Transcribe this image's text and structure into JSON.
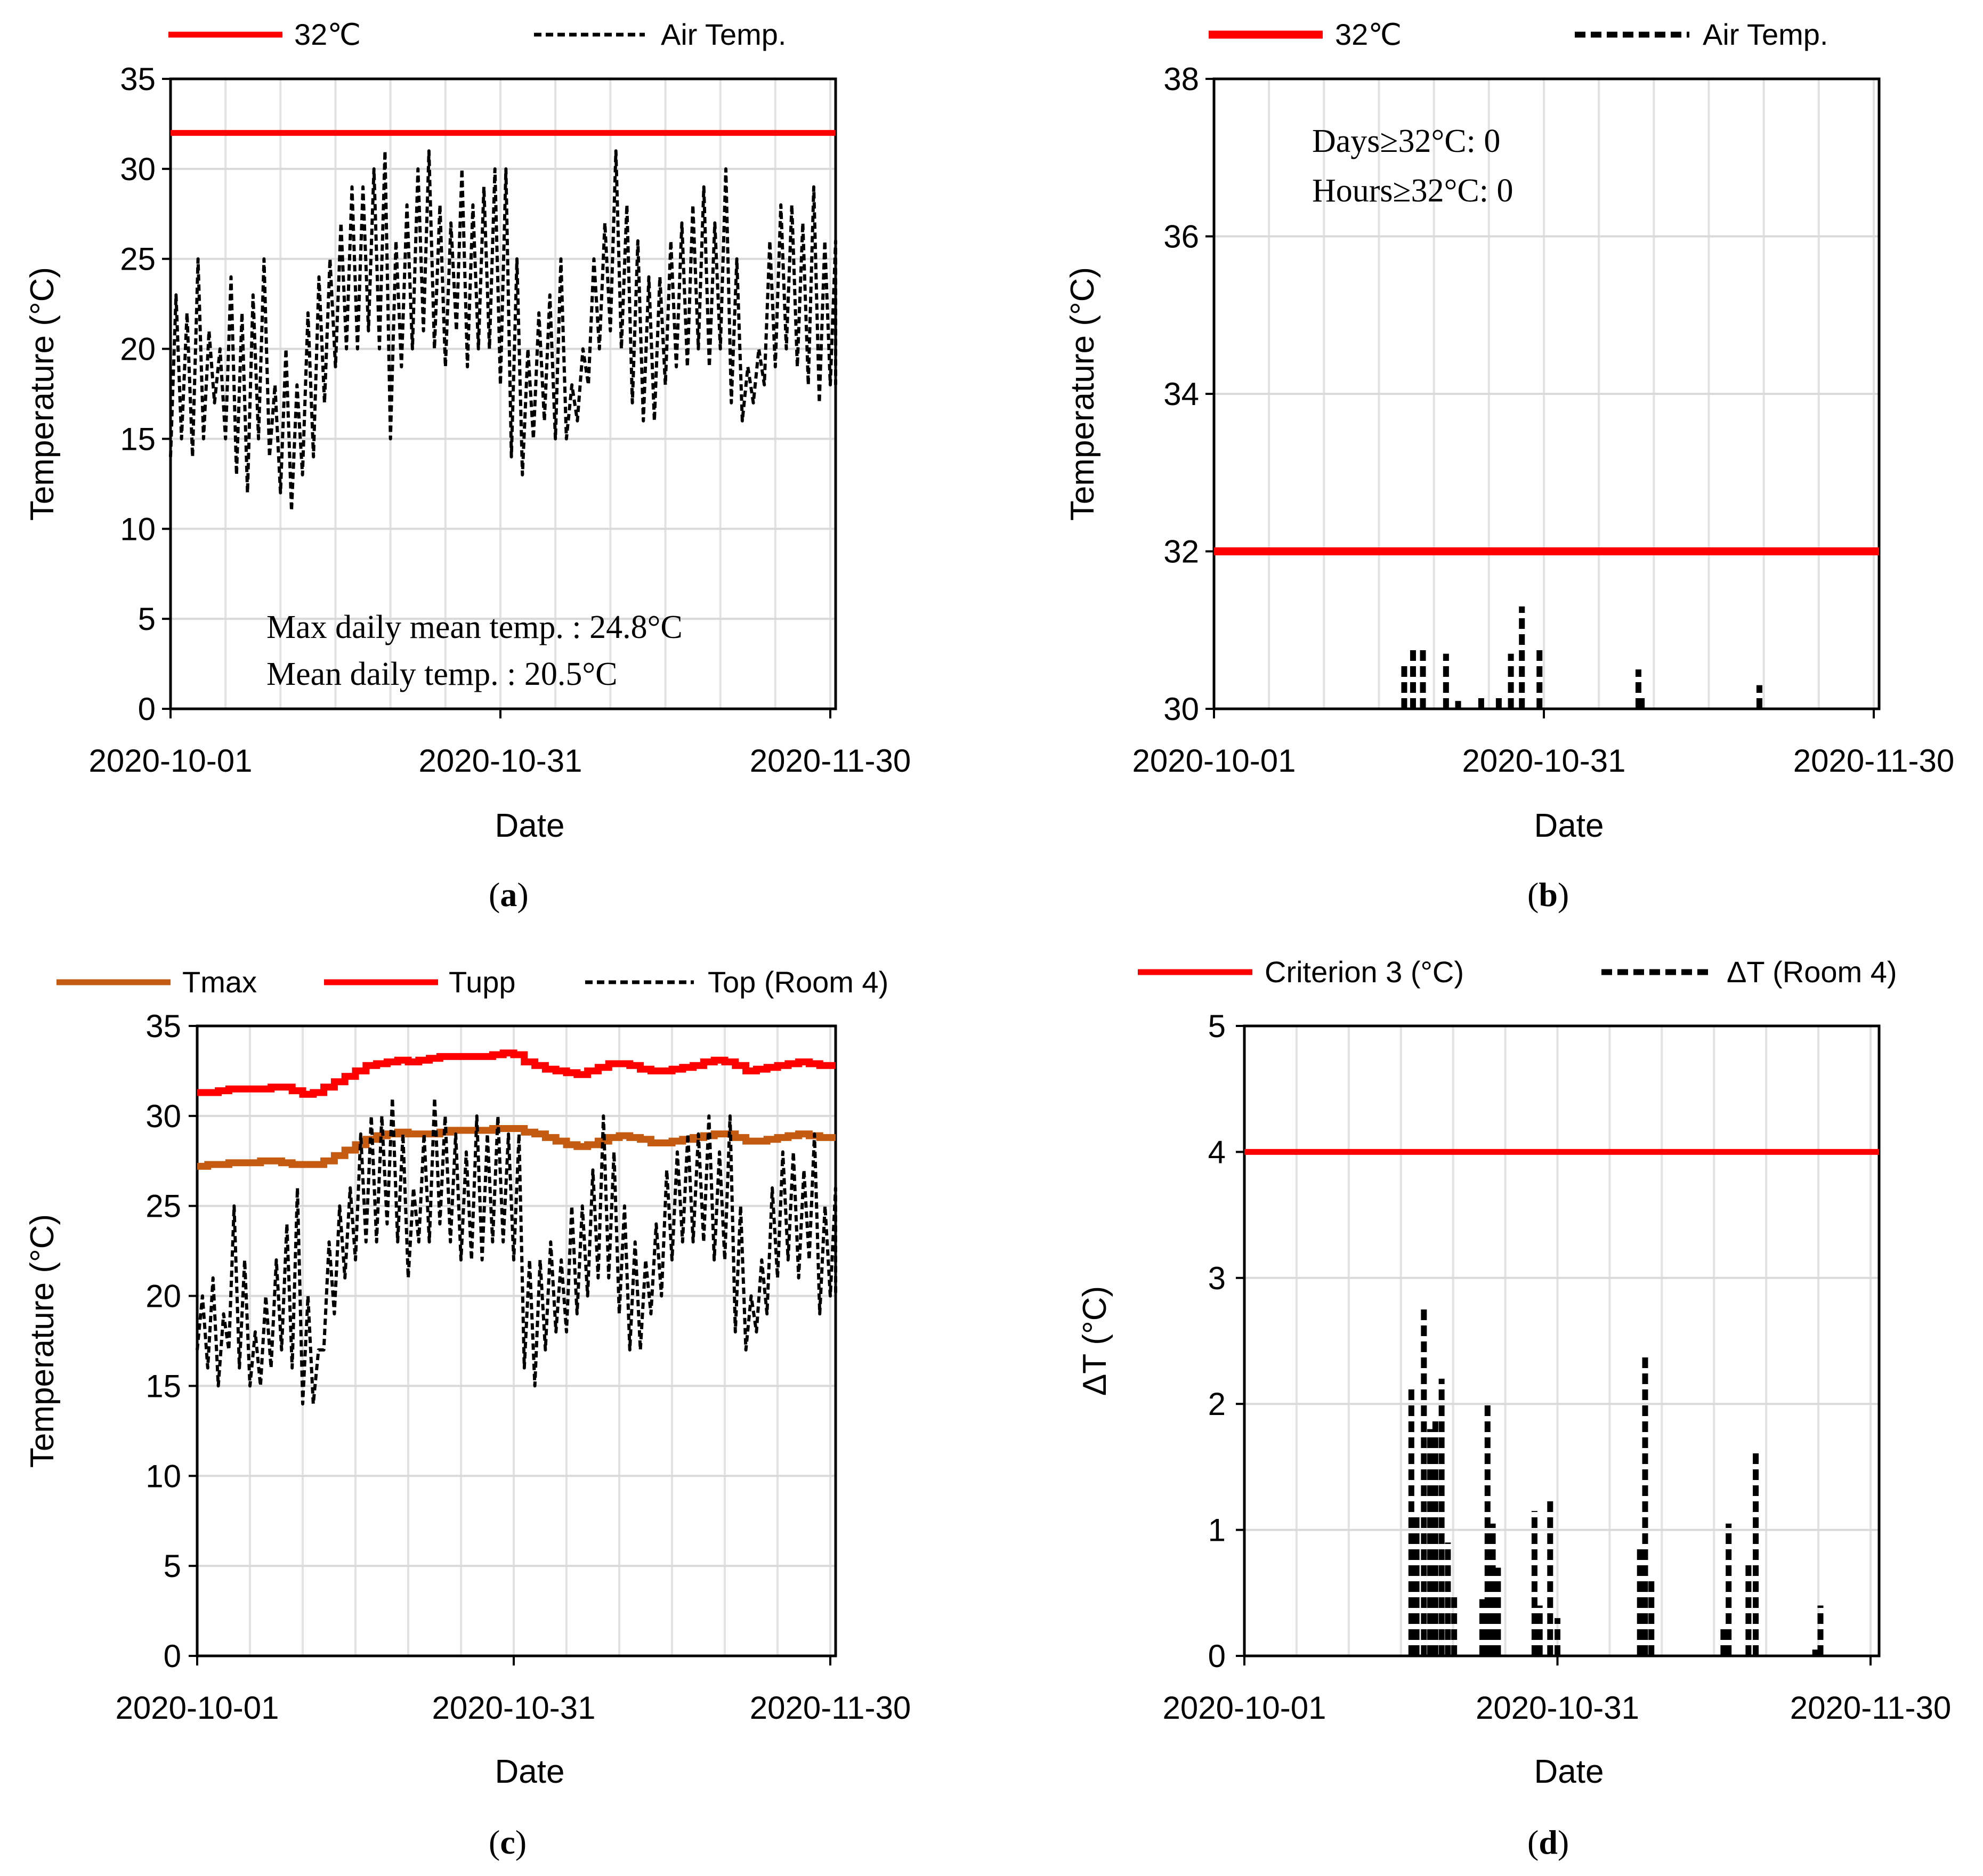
{
  "figure": {
    "panel_labels": [
      "a",
      "b",
      "c",
      "d"
    ]
  },
  "chart_data": [
    {
      "panel": "a",
      "type": "line",
      "title": "",
      "xlabel": "Date",
      "ylabel": "Temperature (°C)",
      "ylim": [
        0,
        35
      ],
      "y_ticks": [
        0,
        5,
        10,
        15,
        20,
        25,
        30,
        35
      ],
      "x_tick_labels": [
        "2020-10-01",
        "2020-10-31",
        "2020-11-30"
      ],
      "x_day_range": [
        0,
        60
      ],
      "grid": true,
      "legend": [
        "32℃",
        "Air Temp."
      ],
      "annotations": [
        "Max daily mean temp. : 24.8°C",
        "Mean daily temp. : 20.5°C"
      ],
      "series": [
        {
          "name": "32℃",
          "color": "#ff0000",
          "style": "solid",
          "x": [
            0,
            63
          ],
          "y": [
            32,
            32
          ]
        },
        {
          "name": "Air Temp.",
          "color": "#000000",
          "style": "dashed",
          "oscillating": true,
          "day_max": [
            23,
            22,
            25,
            21,
            20,
            24,
            22,
            23,
            25,
            18,
            20,
            18,
            22,
            24,
            25,
            27,
            29,
            29,
            30,
            31,
            26,
            28,
            30,
            31,
            28,
            27,
            30,
            28,
            29,
            30,
            30,
            25,
            20,
            22,
            23,
            25,
            18,
            20,
            25,
            27,
            31,
            28,
            26,
            24,
            24,
            26,
            27,
            28,
            29,
            27,
            30,
            25,
            19,
            20,
            26,
            28,
            28,
            27,
            29,
            26,
            26
          ],
          "day_min": [
            14,
            15,
            14,
            15,
            17,
            15,
            13,
            12,
            15,
            14,
            12,
            11,
            13,
            14,
            17,
            19,
            20,
            20,
            21,
            20,
            15,
            19,
            20,
            21,
            20,
            19,
            21,
            19,
            20,
            20,
            18,
            14,
            13,
            15,
            16,
            15,
            15,
            16,
            18,
            20,
            21,
            20,
            17,
            16,
            16,
            18,
            19,
            19,
            20,
            19,
            20,
            17,
            16,
            17,
            18,
            19,
            20,
            19,
            18,
            17,
            18
          ]
        }
      ]
    },
    {
      "panel": "b",
      "type": "line",
      "title": "",
      "xlabel": "Date",
      "ylabel": "Temperature (°C)",
      "ylim": [
        30,
        38
      ],
      "y_ticks": [
        30,
        32,
        34,
        36,
        38
      ],
      "x_tick_labels": [
        "2020-10-01",
        "2020-10-31",
        "2020-11-30"
      ],
      "x_day_range": [
        0,
        60
      ],
      "grid": true,
      "legend": [
        "32℃",
        "Air Temp."
      ],
      "annotations": [
        "Days≥32°C: 0",
        "Hours≥32°C: 0"
      ],
      "series": [
        {
          "name": "32℃",
          "color": "#ff0000",
          "style": "solid",
          "x": [
            0,
            61
          ],
          "y": [
            32,
            32
          ]
        },
        {
          "name": "Air Temp.",
          "color": "#000000",
          "style": "dashed",
          "spikes": true,
          "x": [
            17.3,
            18.1,
            19.0,
            21.1,
            22.2,
            24.3,
            25.9,
            27.0,
            28.0,
            29.6,
            38.6,
            38.9,
            49.6
          ],
          "y": [
            30.6,
            30.8,
            30.8,
            30.7,
            30.1,
            30.2,
            30.2,
            30.7,
            31.3,
            30.8,
            30.5,
            30.2,
            30.3
          ]
        }
      ]
    },
    {
      "panel": "c",
      "type": "line",
      "title": "",
      "xlabel": "Date",
      "ylabel": "Temperature (°C)",
      "ylim": [
        0,
        35
      ],
      "y_ticks": [
        0,
        5,
        10,
        15,
        20,
        25,
        30,
        35
      ],
      "x_tick_labels": [
        "2020-10-01",
        "2020-10-31",
        "2020-11-30"
      ],
      "x_day_range": [
        0,
        60
      ],
      "grid": true,
      "legend": [
        "Tmax",
        "Tupp",
        "Top (Room 4)"
      ],
      "series": [
        {
          "name": "Tmax",
          "color": "#c55a11",
          "style": "solid",
          "step": true,
          "y": [
            27.2,
            27.3,
            27.3,
            27.4,
            27.4,
            27.4,
            27.5,
            27.5,
            27.4,
            27.3,
            27.3,
            27.3,
            27.5,
            27.8,
            28.1,
            28.4,
            28.7,
            28.9,
            29.0,
            29.1,
            29.0,
            29.0,
            29.0,
            29.1,
            29.2,
            29.2,
            29.2,
            29.2,
            29.3,
            29.3,
            29.3,
            29.1,
            29.0,
            28.8,
            28.6,
            28.4,
            28.3,
            28.4,
            28.6,
            28.8,
            28.9,
            28.8,
            28.7,
            28.5,
            28.5,
            28.6,
            28.7,
            28.8,
            28.9,
            29.0,
            29.0,
            28.8,
            28.6,
            28.6,
            28.7,
            28.8,
            28.9,
            29.0,
            28.9,
            28.8,
            28.8
          ]
        },
        {
          "name": "Tupp",
          "color": "#ff0000",
          "style": "solid",
          "step": true,
          "y": [
            31.3,
            31.3,
            31.4,
            31.5,
            31.5,
            31.5,
            31.5,
            31.6,
            31.6,
            31.4,
            31.2,
            31.3,
            31.6,
            31.9,
            32.2,
            32.5,
            32.8,
            32.9,
            33.0,
            33.1,
            33.0,
            33.1,
            33.2,
            33.3,
            33.3,
            33.3,
            33.3,
            33.3,
            33.4,
            33.5,
            33.4,
            33.0,
            32.8,
            32.6,
            32.5,
            32.4,
            32.3,
            32.5,
            32.7,
            32.9,
            32.9,
            32.8,
            32.6,
            32.5,
            32.5,
            32.6,
            32.7,
            32.8,
            33.0,
            33.1,
            33.0,
            32.8,
            32.5,
            32.6,
            32.7,
            32.8,
            32.9,
            33.0,
            32.9,
            32.8,
            32.8
          ]
        },
        {
          "name": "Top (Room 4)",
          "color": "#000000",
          "style": "dashed",
          "oscillating": true,
          "day_max": [
            20,
            21,
            19,
            25,
            22,
            18,
            20,
            22,
            24,
            26,
            20,
            17,
            23,
            25,
            26,
            29,
            30,
            30,
            31,
            29,
            26,
            29,
            31,
            30,
            29,
            28,
            30,
            29,
            30,
            29,
            29,
            22,
            22,
            23,
            22,
            25,
            25,
            27,
            30,
            28,
            25,
            23,
            22,
            24,
            27,
            28,
            29,
            29,
            30,
            28,
            30,
            25,
            20,
            22,
            26,
            28,
            28,
            27,
            29,
            25,
            26
          ],
          "day_min": [
            17,
            16,
            15,
            17,
            16,
            15,
            15,
            16,
            17,
            16,
            14,
            14,
            17,
            19,
            21,
            22,
            23,
            23,
            24,
            23,
            21,
            23,
            23,
            24,
            23,
            22,
            22,
            22,
            23,
            23,
            22,
            16,
            15,
            17,
            18,
            18,
            19,
            20,
            21,
            21,
            19,
            17,
            17,
            19,
            20,
            22,
            23,
            23,
            23,
            22,
            22,
            18,
            17,
            18,
            19,
            21,
            22,
            21,
            22,
            19,
            20
          ]
        }
      ]
    },
    {
      "panel": "d",
      "type": "line",
      "title": "",
      "xlabel": "Date",
      "ylabel": "ΔT  (°C)",
      "ylim": [
        0,
        5
      ],
      "y_ticks": [
        0,
        1,
        2,
        3,
        4,
        5
      ],
      "x_tick_labels": [
        "2020-10-01",
        "2020-10-31",
        "2020-11-30"
      ],
      "x_day_range": [
        0,
        60
      ],
      "grid": true,
      "legend": [
        "Criterion 3 (°C)",
        "ΔT (Room 4)"
      ],
      "series": [
        {
          "name": "Criterion 3 (°C)",
          "color": "#ff0000",
          "style": "solid",
          "x": [
            0,
            61
          ],
          "y": [
            4,
            4
          ]
        },
        {
          "name": "ΔT (Room 4)",
          "color": "#000000",
          "style": "dashed",
          "spikes": true,
          "x": [
            16.0,
            16.5,
            17.2,
            17.8,
            18.3,
            18.9,
            19.5,
            20.1,
            22.8,
            23.3,
            23.8,
            24.3,
            27.8,
            28.3,
            29.3,
            30.0,
            37.9,
            38.4,
            39.0,
            45.9,
            46.4,
            48.3,
            49.0,
            54.7,
            55.2
          ],
          "y": [
            2.15,
            1.1,
            2.75,
            1.8,
            1.9,
            2.2,
            0.9,
            0.5,
            0.45,
            2.0,
            1.05,
            0.7,
            1.15,
            0.4,
            1.25,
            0.3,
            0.85,
            2.4,
            0.6,
            0.25,
            1.05,
            0.75,
            1.65,
            0.05,
            0.4
          ]
        }
      ]
    }
  ]
}
